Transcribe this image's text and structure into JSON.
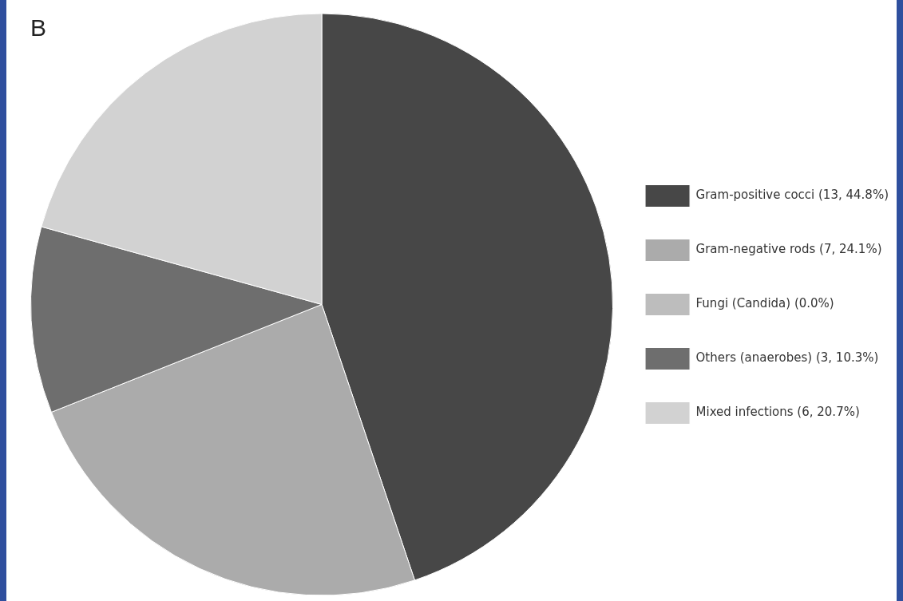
{
  "chart_data": {
    "type": "pie",
    "title": "B",
    "categories": [
      "Gram-positive cocci (13, 44.8%)",
      "Gram-negative rods (7, 24.1%)",
      "Fungi (Candida) (0.0%)",
      "Others (anaerobes) (3, 10.3%)",
      "Mixed infections (6, 20.7%)"
    ],
    "values": [
      13,
      7,
      0,
      3,
      6
    ],
    "colors": [
      "#474747",
      "#ababab",
      "#bdbdbd",
      "#6e6e6e",
      "#d2d2d2"
    ],
    "legend": "right"
  }
}
